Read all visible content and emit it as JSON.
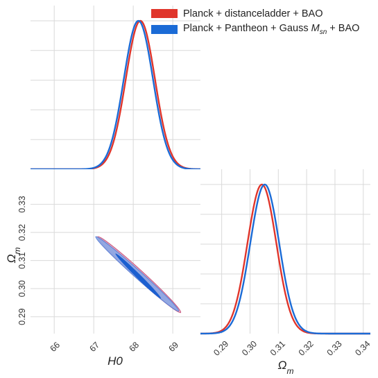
{
  "colors": {
    "red": "#e0352b",
    "blue": "#1b6bd6",
    "grid": "#d9d9d9",
    "panel": "#ffffff",
    "frame": "#c8c8c8"
  },
  "legend": {
    "items": [
      {
        "label": "Planck + distanceladder + BAO",
        "color": "#e0352b"
      },
      {
        "label": "Planck + Pantheon + Gauss M_sn + BAO",
        "color": "#1b6bd6"
      }
    ]
  },
  "chart_data": [
    {
      "type": "line",
      "panel": "H0 marginal posterior",
      "xlim": [
        65.4,
        69.7
      ],
      "x_ticks": [
        "66",
        "67",
        "68",
        "69"
      ],
      "x_tick_values": [
        66,
        67,
        68,
        69
      ],
      "grid": true,
      "series": [
        {
          "name": "Planck + distanceladder + BAO",
          "peak": 68.18,
          "sigma": 0.37,
          "color": "#e0352b"
        },
        {
          "name": "Planck + Pantheon + Gauss M_sn + BAO",
          "peak": 68.13,
          "sigma": 0.37,
          "color": "#1b6bd6"
        }
      ]
    },
    {
      "type": "scatter",
      "panel": "H0 vs Omega_m joint posterior",
      "xlabel": "H0",
      "ylabel": "Ω_m",
      "xlim": [
        65.4,
        69.7
      ],
      "ylim": [
        0.284,
        0.3425
      ],
      "x_ticks": [
        "66",
        "67",
        "68",
        "69"
      ],
      "x_tick_values": [
        66,
        67,
        68,
        69
      ],
      "y_ticks": [
        "0.29",
        "0.30",
        "0.31",
        "0.32",
        "0.33"
      ],
      "y_tick_values": [
        0.29,
        0.3,
        0.31,
        0.32,
        0.33
      ],
      "grid": true,
      "contours": [
        {
          "name": "Planck + distanceladder + BAO",
          "level": "95%",
          "x_range": [
            67.1,
            69.2
          ],
          "y_range": [
            0.2915,
            0.3185
          ],
          "fill": "#e8a0b8"
        },
        {
          "name": "Planck + Pantheon + Gauss M_sn + BAO",
          "level": "95%",
          "x_range": [
            67.05,
            69.15
          ],
          "y_range": [
            0.292,
            0.3185
          ],
          "fill": "#8aa7e6"
        },
        {
          "name": "Planck + Pantheon + Gauss M_sn + BAO",
          "level": "68%",
          "x_range": [
            67.55,
            68.7
          ],
          "y_range": [
            0.2965,
            0.3125
          ],
          "fill": "#1b5fd0"
        }
      ]
    },
    {
      "type": "line",
      "panel": "Omega_m marginal posterior",
      "xlabel": "Ω_m",
      "xlim": [
        0.2825,
        0.3425
      ],
      "x_ticks": [
        "0.29",
        "0.30",
        "0.31",
        "0.32",
        "0.33",
        "0.34"
      ],
      "x_tick_values": [
        0.29,
        0.3,
        0.31,
        0.32,
        0.33,
        0.34
      ],
      "grid": true,
      "series": [
        {
          "name": "Planck + distanceladder + BAO",
          "peak": 0.3042,
          "sigma": 0.0051,
          "color": "#e0352b"
        },
        {
          "name": "Planck + Pantheon + Gauss M_sn + BAO",
          "peak": 0.3052,
          "sigma": 0.0051,
          "color": "#1b6bd6"
        }
      ]
    }
  ]
}
